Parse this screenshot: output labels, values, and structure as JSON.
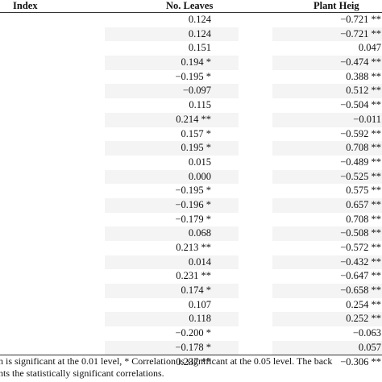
{
  "table": {
    "headers": {
      "index": "Index",
      "leaves": "No. Leaves",
      "height": "Plant Heig"
    },
    "rows": [
      {
        "leaves": "0.124",
        "height": "−0.721 **",
        "shade": false
      },
      {
        "leaves": "0.124",
        "height": "−0.721 **",
        "shade": true
      },
      {
        "leaves": "0.151",
        "height": "0.047",
        "shade": false
      },
      {
        "leaves": "0.194 *",
        "height": "−0.474 **",
        "shade": true
      },
      {
        "leaves": "−0.195 *",
        "height": "0.388 **",
        "shade": false
      },
      {
        "leaves": "−0.097",
        "height": "0.512 **",
        "shade": true
      },
      {
        "leaves": "0.115",
        "height": "−0.504 **",
        "shade": false
      },
      {
        "leaves": "0.214 **",
        "height": "−0.011",
        "shade": true
      },
      {
        "leaves": "0.157 *",
        "height": "−0.592 **",
        "shade": false
      },
      {
        "leaves": "0.195 *",
        "height": "0.708 **",
        "shade": true
      },
      {
        "leaves": "0.015",
        "height": "−0.489 **",
        "shade": false
      },
      {
        "leaves": "0.000",
        "height": "−0.525 **",
        "shade": true
      },
      {
        "leaves": "−0.195 *",
        "height": "0.575 **",
        "shade": false
      },
      {
        "leaves": "−0.196 *",
        "height": "0.657 **",
        "shade": true
      },
      {
        "leaves": "−0.179 *",
        "height": "0.708 **",
        "shade": false
      },
      {
        "leaves": "0.068",
        "height": "−0.508 **",
        "shade": true
      },
      {
        "leaves": "0.213 **",
        "height": "−0.572 **",
        "shade": false
      },
      {
        "leaves": "0.014",
        "height": "−0.432 **",
        "shade": true
      },
      {
        "leaves": "0.231 **",
        "height": "−0.647 **",
        "shade": false
      },
      {
        "leaves": "0.174 *",
        "height": "−0.658 **",
        "shade": true
      },
      {
        "leaves": "0.107",
        "height": "0.254 **",
        "shade": false
      },
      {
        "leaves": "0.118",
        "height": "0.252 **",
        "shade": true
      },
      {
        "leaves": "−0.200 *",
        "height": "−0.063",
        "shade": false
      },
      {
        "leaves": "−0.178 *",
        "height": "0.057",
        "shade": true
      },
      {
        "leaves": "0.237 **",
        "height": "−0.306 **",
        "shade": false
      }
    ]
  },
  "footnote": {
    "line1": "n is significant at the 0.01 level, * Correlation is significant at the 0.05 level. The back",
    "line2": "hts the statistically significant correlations."
  }
}
